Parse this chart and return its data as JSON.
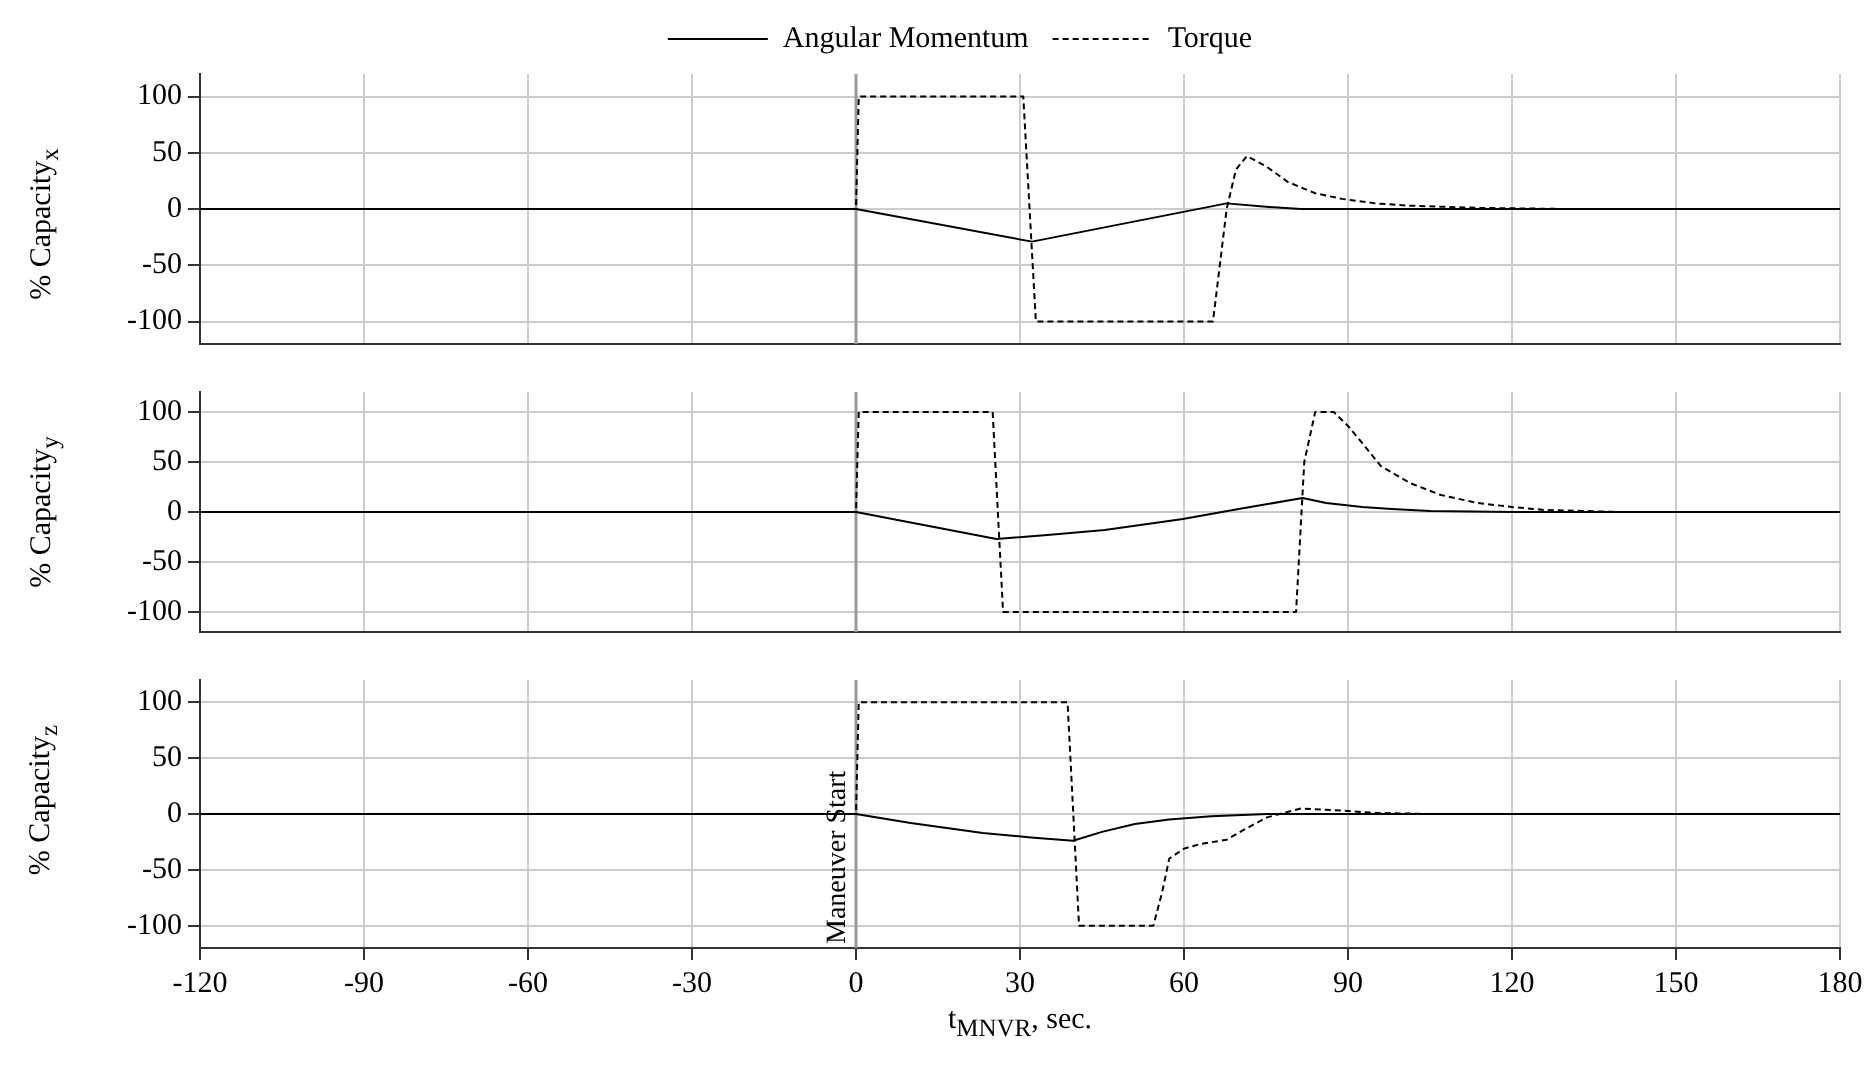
{
  "chart_data": [
    {
      "type": "line",
      "ylabel": "% Capacity$_{x}$",
      "xlim": [
        -120,
        180
      ],
      "xticks": [
        -120,
        -90,
        -60,
        -30,
        0,
        30,
        60,
        90,
        120,
        150,
        180
      ],
      "ylim": [
        -120,
        120
      ],
      "yticks": [
        -100,
        -50,
        0,
        50,
        100
      ],
      "grid": true,
      "legend": "top",
      "tick_labels": "y",
      "marker": "none",
      "ref_lines": [
        {
          "axis": "x",
          "value": 0,
          "color": "#999999"
        }
      ],
      "series": [
        {
          "name": "Angular Momentum",
          "color": "#000000",
          "line_style": "solid",
          "x": [
            -120,
            0,
            32.2,
            67.8,
            75,
            81.4,
            180
          ],
          "values": [
            0,
            0,
            -29,
            5,
            2,
            0,
            0
          ]
        },
        {
          "name": "Torque",
          "color": "#000000",
          "line_style": "dashed",
          "x": [
            -120,
            0,
            0.5,
            30.6,
            32.9,
            65.3,
            67.8,
            69.5,
            71.5,
            75,
            79,
            84,
            88.9,
            95,
            101,
            113.7,
            130,
            180
          ],
          "values": [
            0,
            0,
            100,
            100,
            -100,
            -100,
            0,
            35,
            47,
            38,
            24,
            14,
            9,
            5,
            3,
            1,
            0,
            0
          ]
        }
      ]
    },
    {
      "type": "line",
      "ylabel": "% Capacity$_{y}$",
      "xlim": [
        -120,
        180
      ],
      "xticks": [
        -120,
        -90,
        -60,
        -30,
        0,
        30,
        60,
        90,
        120,
        150,
        180
      ],
      "ylim": [
        -120,
        120
      ],
      "yticks": [
        -100,
        -50,
        0,
        50,
        100
      ],
      "grid": true,
      "tick_labels": "y",
      "marker": "none",
      "ref_lines": [
        {
          "axis": "x",
          "value": 0,
          "color": "#999999"
        }
      ],
      "series": [
        {
          "color": "#000000",
          "line_style": "solid",
          "x": [
            -120,
            0,
            25.7,
            35,
            45.5,
            52,
            59.8,
            70,
            81.7,
            86,
            92.6,
            98,
            105,
            120,
            180
          ],
          "values": [
            0,
            0,
            -27,
            -23,
            -18,
            -13,
            -7,
            3,
            14,
            9,
            5,
            3,
            1,
            0,
            0
          ]
        },
        {
          "color": "#000000",
          "line_style": "dashed",
          "x": [
            -120,
            0,
            0.5,
            25,
            26.9,
            80.5,
            82,
            84,
            87.4,
            90,
            92.6,
            96,
            101.3,
            107,
            113.7,
            120,
            126,
            140,
            180
          ],
          "values": [
            0,
            0,
            100,
            100,
            -100,
            -100,
            50,
            100,
            100,
            86,
            69,
            46,
            29,
            17,
            9,
            5,
            2,
            0,
            0
          ]
        }
      ]
    },
    {
      "type": "line",
      "ylabel": "% Capacity$_{z}$",
      "xlabel": "t$_{MNVR}$, sec.",
      "xlim": [
        -120,
        180
      ],
      "xticks": [
        -120,
        -90,
        -60,
        -30,
        0,
        30,
        60,
        90,
        120,
        150,
        180
      ],
      "ylim": [
        -120,
        120
      ],
      "yticks": [
        -100,
        -50,
        0,
        50,
        100
      ],
      "grid": true,
      "marker": "none",
      "ref_lines": [
        {
          "axis": "x",
          "value": 0,
          "label": "Maneuver Start",
          "color": "#999999"
        }
      ],
      "series": [
        {
          "color": "#000000",
          "line_style": "solid",
          "x": [
            -120,
            0,
            10,
            23.2,
            32,
            39.7,
            45,
            51,
            57.3,
            65,
            75.2,
            180
          ],
          "values": [
            0,
            0,
            -8,
            -17,
            -21,
            -24,
            -16,
            -9,
            -5,
            -2,
            0,
            0
          ]
        },
        {
          "color": "#000000",
          "line_style": "dashed",
          "x": [
            -120,
            0,
            0.5,
            38.7,
            40.8,
            54.4,
            56,
            57.3,
            60,
            62.9,
            67.8,
            71,
            75.2,
            81.4,
            88.9,
            95,
            105,
            180
          ],
          "values": [
            0,
            0,
            100,
            100,
            -100,
            -100,
            -70,
            -40,
            -31,
            -27,
            -23,
            -14,
            -3,
            5,
            3,
            1,
            0,
            0
          ]
        }
      ]
    }
  ]
}
